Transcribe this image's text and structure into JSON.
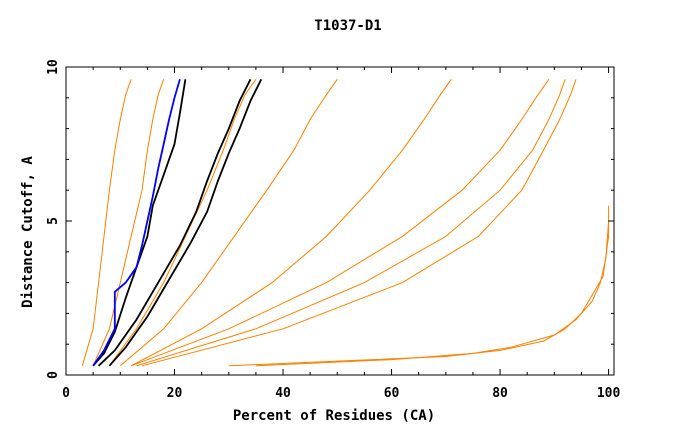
{
  "chart_data": {
    "type": "line",
    "title": "T1037-D1",
    "xlabel": "Percent of Residues (CA)",
    "ylabel": "Distance Cutoff, A",
    "xlim": [
      0,
      101
    ],
    "ylim": [
      0,
      10
    ],
    "x_ticks": [
      "0",
      "20",
      "40",
      "60",
      "80",
      "100"
    ],
    "y_ticks": [
      "0",
      "5",
      "10"
    ],
    "grid": false,
    "series": [
      {
        "group": "orange",
        "color": "#ff8000",
        "x": [
          3,
          5,
          6,
          7,
          8,
          9,
          10,
          11,
          12
        ],
        "y": [
          0.3,
          1.5,
          3,
          4.5,
          6,
          7.3,
          8.3,
          9.1,
          9.6
        ]
      },
      {
        "group": "orange",
        "color": "#ff8000",
        "x": [
          5,
          8,
          10,
          12,
          14,
          15,
          16,
          17,
          18
        ],
        "y": [
          0.3,
          1.5,
          3,
          4.5,
          6,
          7.3,
          8.3,
          9.1,
          9.6
        ]
      },
      {
        "group": "orange",
        "color": "#ff8000",
        "x": [
          8,
          13,
          18,
          22,
          26,
          29,
          31,
          33,
          35
        ],
        "y": [
          0.3,
          1.5,
          3,
          4.5,
          6,
          7.3,
          8.3,
          9.1,
          9.6
        ]
      },
      {
        "group": "orange",
        "color": "#ff8000",
        "x": [
          10,
          18,
          25,
          31,
          37,
          42,
          45,
          48,
          50
        ],
        "y": [
          0.3,
          1.5,
          3,
          4.5,
          6,
          7.3,
          8.3,
          9.1,
          9.6
        ]
      },
      {
        "group": "orange",
        "color": "#ff8000",
        "x": [
          12,
          25,
          38,
          48,
          56,
          62,
          66,
          69,
          71
        ],
        "y": [
          0.3,
          1.5,
          3,
          4.5,
          6,
          7.3,
          8.3,
          9.1,
          9.6
        ]
      },
      {
        "group": "orange",
        "color": "#ff8000",
        "x": [
          12,
          30,
          48,
          62,
          73,
          80,
          84,
          87,
          89
        ],
        "y": [
          0.3,
          1.5,
          3,
          4.5,
          6,
          7.3,
          8.3,
          9.1,
          9.6
        ]
      },
      {
        "group": "orange",
        "color": "#ff8000",
        "x": [
          13,
          35,
          55,
          70,
          80,
          86,
          89,
          91,
          92
        ],
        "y": [
          0.3,
          1.5,
          3,
          4.5,
          6,
          7.3,
          8.3,
          9.1,
          9.6
        ]
      },
      {
        "group": "orange",
        "color": "#ff8000",
        "x": [
          14,
          40,
          62,
          76,
          84,
          88,
          91,
          93,
          94
        ],
        "y": [
          0.3,
          1.5,
          3,
          4.5,
          6,
          7.3,
          8.3,
          9.1,
          9.6
        ]
      },
      {
        "group": "orange",
        "color": "#ff8000",
        "x": [
          30,
          50,
          70,
          80,
          88,
          92,
          95,
          97,
          99,
          100,
          100
        ],
        "y": [
          0.3,
          0.45,
          0.6,
          0.8,
          1.1,
          1.5,
          2.0,
          2.6,
          3.2,
          4.5,
          5.5
        ]
      },
      {
        "group": "orange",
        "color": "#ff8000",
        "x": [
          35,
          60,
          75,
          82,
          90,
          94,
          97,
          98.5,
          99.5,
          100
        ],
        "y": [
          0.3,
          0.5,
          0.7,
          0.9,
          1.3,
          1.8,
          2.4,
          3.0,
          3.8,
          5.0
        ]
      },
      {
        "group": "black",
        "color": "#000000",
        "x": [
          5,
          7,
          9,
          11,
          13,
          15,
          16,
          18,
          20,
          21,
          22
        ],
        "y": [
          0.3,
          0.7,
          1.4,
          2.5,
          3.5,
          4.5,
          5.5,
          6.5,
          7.5,
          8.5,
          9.6
        ]
      },
      {
        "group": "black",
        "color": "#000000",
        "x": [
          6,
          9,
          13,
          17,
          21,
          24,
          26,
          28,
          30,
          32,
          34
        ],
        "y": [
          0.3,
          0.8,
          1.8,
          3.0,
          4.2,
          5.3,
          6.3,
          7.2,
          8.0,
          8.9,
          9.6
        ]
      },
      {
        "group": "black",
        "color": "#000000",
        "x": [
          8,
          11,
          15,
          19,
          23,
          26,
          28,
          30,
          32,
          34,
          36
        ],
        "y": [
          0.3,
          0.9,
          1.9,
          3.1,
          4.3,
          5.3,
          6.3,
          7.2,
          8.0,
          8.9,
          9.6
        ]
      },
      {
        "group": "blue",
        "color": "#0000ff",
        "x": [
          5,
          7,
          9,
          9,
          11,
          13,
          14,
          15,
          16,
          17,
          18,
          19,
          20,
          21
        ],
        "y": [
          0.3,
          0.8,
          1.5,
          2.7,
          3.0,
          3.5,
          4.2,
          5.0,
          5.8,
          6.7,
          7.5,
          8.3,
          9.0,
          9.6
        ]
      }
    ]
  }
}
